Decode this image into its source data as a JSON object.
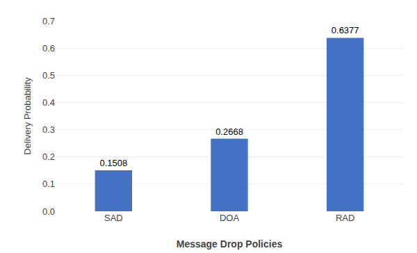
{
  "chart_data": {
    "type": "bar",
    "categories": [
      "SAD",
      "DOA",
      "RAD"
    ],
    "values": [
      0.1508,
      0.2668,
      0.6377
    ],
    "color": "#4472C4",
    "xlabel": "Message Drop Policies",
    "ylabel": "Delivery Probability",
    "ylim": [
      0,
      0.7
    ],
    "yticks": [
      {
        "value": 0,
        "label": "0.0"
      },
      0.1,
      0.2,
      0.3,
      0.4,
      0.5,
      0.6,
      0.7
    ],
    "grid": true,
    "data_labels": true
  }
}
